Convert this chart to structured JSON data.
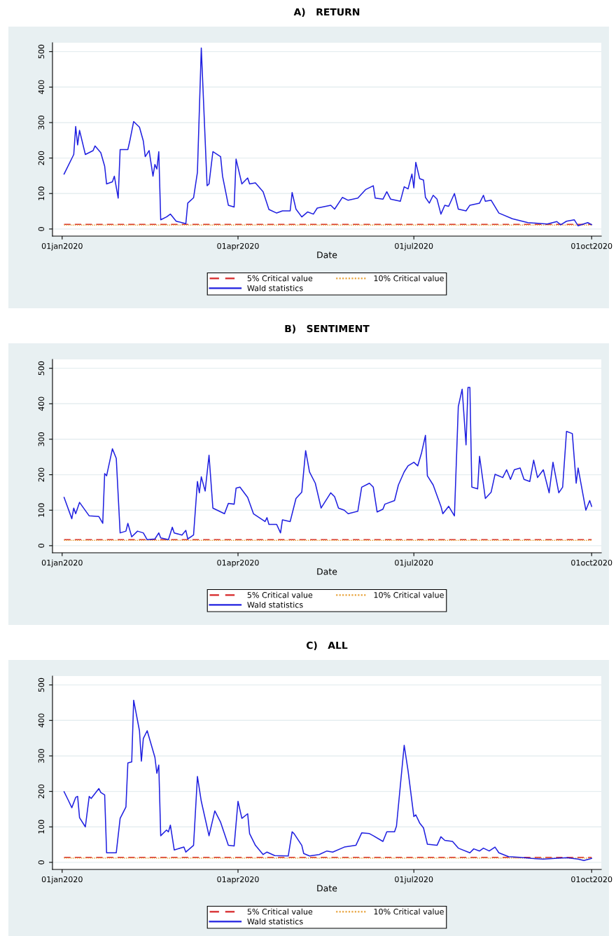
{
  "chart_data": [
    {
      "type": "line",
      "title": "A)   RETURN",
      "xlabel": "Date",
      "xlim": [
        "2019-12-27",
        "2020-10-06"
      ],
      "xticks": [
        {
          "value": "2020-01-01",
          "label": "01jan2020"
        },
        {
          "value": "2020-04-01",
          "label": "01apr2020"
        },
        {
          "value": "2020-07-01",
          "label": "01jul2020"
        },
        {
          "value": "2020-10-01",
          "label": "01oct2020"
        }
      ],
      "ylim": [
        -20,
        525
      ],
      "yticks": [
        0,
        100,
        200,
        300,
        400,
        500
      ],
      "grid": "y",
      "legend": "bottom",
      "series": [
        {
          "name": "5% Critical value",
          "color": "#d62728",
          "line_style": "dashed",
          "x": [
            "2020-01-02",
            "2020-10-01"
          ],
          "values": [
            13,
            13
          ]
        },
        {
          "name": "10% Critical value",
          "color": "#e8a33c",
          "line_style": "dotted",
          "x": [
            "2020-01-02",
            "2020-10-01"
          ],
          "values": [
            11,
            11
          ]
        },
        {
          "name": "Wald statistics",
          "color": "#1f1fe0",
          "line_style": "solid",
          "x": [
            "2020-01-02",
            "2020-01-07",
            "2020-01-08",
            "2020-01-09",
            "2020-01-10",
            "2020-01-13",
            "2020-01-17",
            "2020-01-18",
            "2020-01-21",
            "2020-01-23",
            "2020-01-24",
            "2020-01-27",
            "2020-01-28",
            "2020-01-30",
            "2020-01-31",
            "2020-02-04",
            "2020-02-05",
            "2020-02-07",
            "2020-02-10",
            "2020-02-12",
            "2020-02-13",
            "2020-02-15",
            "2020-02-17",
            "2020-02-18",
            "2020-02-19",
            "2020-02-20",
            "2020-02-21",
            "2020-02-24",
            "2020-02-26",
            "2020-02-29",
            "2020-03-05",
            "2020-03-06",
            "2020-03-09",
            "2020-03-11",
            "2020-03-13",
            "2020-03-16",
            "2020-03-17",
            "2020-03-19",
            "2020-03-23",
            "2020-03-24",
            "2020-03-27",
            "2020-03-30",
            "2020-03-31",
            "2020-04-03",
            "2020-04-06",
            "2020-04-07",
            "2020-04-10",
            "2020-04-14",
            "2020-04-17",
            "2020-04-21",
            "2020-04-24",
            "2020-04-28",
            "2020-04-29",
            "2020-05-01",
            "2020-05-04",
            "2020-05-07",
            "2020-05-10",
            "2020-05-12",
            "2020-05-19",
            "2020-05-21",
            "2020-05-25",
            "2020-05-28",
            "2020-06-02",
            "2020-06-06",
            "2020-06-10",
            "2020-06-11",
            "2020-06-15",
            "2020-06-17",
            "2020-06-19",
            "2020-06-24",
            "2020-06-26",
            "2020-06-28",
            "2020-06-30",
            "2020-07-01",
            "2020-07-02",
            "2020-07-04",
            "2020-07-06",
            "2020-07-07",
            "2020-07-09",
            "2020-07-11",
            "2020-07-13",
            "2020-07-15",
            "2020-07-17",
            "2020-07-19",
            "2020-07-22",
            "2020-07-24",
            "2020-07-28",
            "2020-07-30",
            "2020-08-04",
            "2020-08-06",
            "2020-08-07",
            "2020-08-10",
            "2020-08-14",
            "2020-08-21",
            "2020-08-29",
            "2020-09-08",
            "2020-09-13",
            "2020-09-15",
            "2020-09-18",
            "2020-09-22",
            "2020-09-24",
            "2020-09-29",
            "2020-10-01"
          ],
          "values": [
            155,
            210,
            289,
            237,
            278,
            210,
            221,
            234,
            215,
            177,
            127,
            133,
            149,
            87,
            224,
            224,
            248,
            303,
            287,
            248,
            204,
            221,
            149,
            182,
            169,
            218,
            26,
            34,
            42,
            22,
            15,
            73,
            88,
            160,
            510,
            122,
            127,
            218,
            204,
            149,
            67,
            62,
            197,
            127,
            144,
            127,
            130,
            105,
            55,
            45,
            51,
            51,
            103,
            56,
            34,
            48,
            42,
            59,
            67,
            56,
            89,
            81,
            87,
            111,
            122,
            87,
            84,
            105,
            84,
            78,
            119,
            113,
            155,
            116,
            188,
            142,
            138,
            89,
            73,
            95,
            84,
            42,
            67,
            64,
            100,
            56,
            51,
            67,
            73,
            95,
            78,
            81,
            45,
            29,
            18,
            14,
            21,
            12,
            22,
            26,
            9,
            18,
            12
          ]
        }
      ]
    },
    {
      "type": "line",
      "title": "B)   SENTIMENT",
      "xlabel": "Date",
      "xlim": [
        "2019-12-27",
        "2020-10-06"
      ],
      "xticks": [
        {
          "value": "2020-01-01",
          "label": "01jan2020"
        },
        {
          "value": "2020-04-01",
          "label": "01apr2020"
        },
        {
          "value": "2020-07-01",
          "label": "01jul2020"
        },
        {
          "value": "2020-10-01",
          "label": "01oct2020"
        }
      ],
      "ylim": [
        -20,
        525
      ],
      "yticks": [
        0,
        100,
        200,
        300,
        400,
        500
      ],
      "grid": "y",
      "legend": "bottom",
      "series": [
        {
          "name": "5% Critical value",
          "color": "#d62728",
          "line_style": "dashed",
          "x": [
            "2020-01-02",
            "2020-10-01"
          ],
          "values": [
            17,
            17
          ]
        },
        {
          "name": "10% Critical value",
          "color": "#e8a33c",
          "line_style": "dotted",
          "x": [
            "2020-01-02",
            "2020-10-01"
          ],
          "values": [
            15,
            15
          ]
        },
        {
          "name": "Wald statistics",
          "color": "#1f1fe0",
          "line_style": "solid",
          "x": [
            "2020-01-02",
            "2020-01-06",
            "2020-01-07",
            "2020-01-08",
            "2020-01-10",
            "2020-01-15",
            "2020-01-20",
            "2020-01-22",
            "2020-01-23",
            "2020-01-24",
            "2020-01-27",
            "2020-01-29",
            "2020-01-31",
            "2020-02-03",
            "2020-02-04",
            "2020-02-06",
            "2020-02-09",
            "2020-02-12",
            "2020-02-14",
            "2020-02-18",
            "2020-02-20",
            "2020-02-21",
            "2020-02-25",
            "2020-02-27",
            "2020-02-28",
            "2020-03-03",
            "2020-03-05",
            "2020-03-06",
            "2020-03-09",
            "2020-03-11",
            "2020-03-12",
            "2020-03-13",
            "2020-03-15",
            "2020-03-17",
            "2020-03-19",
            "2020-03-25",
            "2020-03-27",
            "2020-03-30",
            "2020-03-31",
            "2020-04-02",
            "2020-04-06",
            "2020-04-09",
            "2020-04-12",
            "2020-04-15",
            "2020-04-16",
            "2020-04-17",
            "2020-04-21",
            "2020-04-23",
            "2020-04-24",
            "2020-04-28",
            "2020-05-01",
            "2020-05-04",
            "2020-05-06",
            "2020-05-08",
            "2020-05-11",
            "2020-05-14",
            "2020-05-19",
            "2020-05-21",
            "2020-05-23",
            "2020-05-26",
            "2020-05-28",
            "2020-06-02",
            "2020-06-04",
            "2020-06-08",
            "2020-06-10",
            "2020-06-12",
            "2020-06-15",
            "2020-06-16",
            "2020-06-21",
            "2020-06-23",
            "2020-06-26",
            "2020-06-28",
            "2020-07-01",
            "2020-07-03",
            "2020-07-05",
            "2020-07-07",
            "2020-07-08",
            "2020-07-11",
            "2020-07-15",
            "2020-07-16",
            "2020-07-19",
            "2020-07-22",
            "2020-07-24",
            "2020-07-26",
            "2020-07-28",
            "2020-07-29",
            "2020-07-30",
            "2020-07-31",
            "2020-08-03",
            "2020-08-04",
            "2020-08-07",
            "2020-08-10",
            "2020-08-12",
            "2020-08-16",
            "2020-08-18",
            "2020-08-20",
            "2020-08-22",
            "2020-08-25",
            "2020-08-27",
            "2020-08-30",
            "2020-09-01",
            "2020-09-03",
            "2020-09-06",
            "2020-09-09",
            "2020-09-11",
            "2020-09-14",
            "2020-09-16",
            "2020-09-18",
            "2020-09-21",
            "2020-09-23",
            "2020-09-24",
            "2020-09-28",
            "2020-09-30",
            "2020-10-01"
          ],
          "values": [
            136,
            76,
            106,
            90,
            122,
            84,
            82,
            63,
            203,
            197,
            273,
            246,
            36,
            41,
            63,
            25,
            41,
            36,
            17,
            19,
            36,
            22,
            17,
            52,
            36,
            30,
            43,
            19,
            30,
            181,
            149,
            194,
            154,
            255,
            106,
            90,
            119,
            117,
            162,
            165,
            136,
            90,
            79,
            68,
            79,
            60,
            60,
            36,
            73,
            68,
            133,
            151,
            268,
            208,
            176,
            106,
            149,
            138,
            106,
            100,
            90,
            97,
            165,
            176,
            165,
            95,
            103,
            117,
            127,
            171,
            208,
            225,
            235,
            225,
            262,
            311,
            197,
            171,
            111,
            90,
            111,
            84,
            392,
            441,
            284,
            446,
            446,
            165,
            160,
            252,
            133,
            151,
            201,
            192,
            214,
            187,
            214,
            219,
            187,
            181,
            241,
            192,
            214,
            149,
            235,
            149,
            165,
            322,
            316,
            176,
            219,
            100,
            127,
            111
          ]
        }
      ]
    },
    {
      "type": "line",
      "title": "C)   ALL",
      "xlabel": "Date",
      "xlim": [
        "2019-12-27",
        "2020-10-06"
      ],
      "xticks": [
        {
          "value": "2020-01-01",
          "label": "01jan2020"
        },
        {
          "value": "2020-04-01",
          "label": "01apr2020"
        },
        {
          "value": "2020-07-01",
          "label": "01jul2020"
        },
        {
          "value": "2020-10-01",
          "label": "01oct2020"
        }
      ],
      "ylim": [
        -20,
        525
      ],
      "yticks": [
        0,
        100,
        200,
        300,
        400,
        500
      ],
      "grid": "y",
      "legend": "bottom",
      "series": [
        {
          "name": "5% Critical value",
          "color": "#d62728",
          "line_style": "dashed",
          "x": [
            "2020-01-02",
            "2020-10-01"
          ],
          "values": [
            14,
            14
          ]
        },
        {
          "name": "10% Critical value",
          "color": "#e8a33c",
          "line_style": "dotted",
          "x": [
            "2020-01-02",
            "2020-10-01"
          ],
          "values": [
            12,
            12
          ]
        },
        {
          "name": "Wald statistics",
          "color": "#1f1fe0",
          "line_style": "solid",
          "x": [
            "2020-01-02",
            "2020-01-04",
            "2020-01-06",
            "2020-01-08",
            "2020-01-09",
            "2020-01-10",
            "2020-01-13",
            "2020-01-15",
            "2020-01-16",
            "2020-01-20",
            "2020-01-21",
            "2020-01-23",
            "2020-01-24",
            "2020-01-29",
            "2020-01-31",
            "2020-02-03",
            "2020-02-04",
            "2020-02-06",
            "2020-02-07",
            "2020-02-10",
            "2020-02-11",
            "2020-02-12",
            "2020-02-14",
            "2020-02-18",
            "2020-02-19",
            "2020-02-20",
            "2020-02-21",
            "2020-02-24",
            "2020-02-25",
            "2020-02-26",
            "2020-02-28",
            "2020-03-04",
            "2020-03-05",
            "2020-03-09",
            "2020-03-11",
            "2020-03-13",
            "2020-03-17",
            "2020-03-20",
            "2020-03-23",
            "2020-03-27",
            "2020-03-30",
            "2020-04-01",
            "2020-04-03",
            "2020-04-06",
            "2020-04-07",
            "2020-04-10",
            "2020-04-14",
            "2020-04-16",
            "2020-04-20",
            "2020-04-27",
            "2020-04-29",
            "2020-04-30",
            "2020-05-04",
            "2020-05-05",
            "2020-05-08",
            "2020-05-13",
            "2020-05-17",
            "2020-05-20",
            "2020-05-26",
            "2020-06-01",
            "2020-06-04",
            "2020-06-08",
            "2020-06-10",
            "2020-06-15",
            "2020-06-17",
            "2020-06-21",
            "2020-06-22",
            "2020-06-26",
            "2020-06-28",
            "2020-07-01",
            "2020-07-02",
            "2020-07-04",
            "2020-07-06",
            "2020-07-08",
            "2020-07-13",
            "2020-07-15",
            "2020-07-17",
            "2020-07-21",
            "2020-07-24",
            "2020-07-30",
            "2020-08-01",
            "2020-08-04",
            "2020-08-06",
            "2020-08-09",
            "2020-08-12",
            "2020-08-14",
            "2020-08-19",
            "2020-08-25",
            "2020-08-31",
            "2020-09-06",
            "2020-09-12",
            "2020-09-18",
            "2020-09-24",
            "2020-09-27",
            "2020-10-01"
          ],
          "values": [
            199,
            177,
            154,
            183,
            186,
            126,
            100,
            186,
            180,
            208,
            197,
            190,
            27,
            27,
            124,
            156,
            280,
            283,
            457,
            371,
            285,
            349,
            371,
            296,
            251,
            274,
            75,
            91,
            86,
            105,
            35,
            43,
            29,
            48,
            242,
            172,
            75,
            145,
            113,
            48,
            46,
            172,
            124,
            137,
            81,
            48,
            22,
            29,
            19,
            18,
            86,
            81,
            48,
            25,
            18,
            22,
            32,
            29,
            43,
            48,
            83,
            81,
            75,
            59,
            86,
            86,
            102,
            330,
            258,
            129,
            134,
            111,
            97,
            51,
            48,
            72,
            62,
            59,
            40,
            27,
            38,
            32,
            40,
            32,
            43,
            27,
            16,
            14,
            11,
            9,
            11,
            13,
            9,
            5,
            11
          ]
        }
      ]
    }
  ]
}
